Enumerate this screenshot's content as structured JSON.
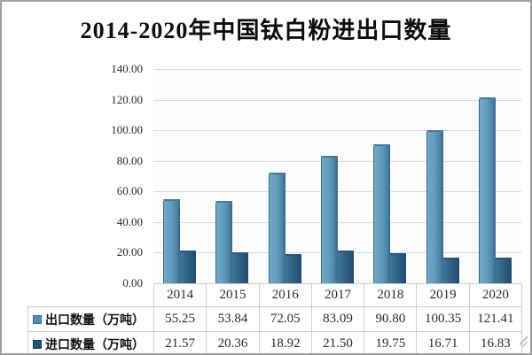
{
  "title": "2014-2020年中国钛白粉进出口数量",
  "chart_data": {
    "type": "bar",
    "title": "2014-2020年中国钛白粉进出口数量",
    "categories": [
      "2014",
      "2015",
      "2016",
      "2017",
      "2018",
      "2019",
      "2020"
    ],
    "series": [
      {
        "name": "出口数量（万吨）",
        "values": [
          55.25,
          53.84,
          72.05,
          83.09,
          90.8,
          100.35,
          121.41
        ],
        "color": "#4e8fb4"
      },
      {
        "name": "进口数量（万吨）",
        "values": [
          21.57,
          20.36,
          18.92,
          21.5,
          19.75,
          16.71,
          16.83
        ],
        "color": "#215577"
      }
    ],
    "xlabel": "",
    "ylabel": "",
    "ylim": [
      0,
      140
    ],
    "ytick_step": 20,
    "ytick_decimals": 2,
    "grid": true,
    "legend_position": "table-rows-left"
  },
  "table": {
    "year_header": [
      "2014",
      "2015",
      "2016",
      "2017",
      "2018",
      "2019",
      "2020"
    ],
    "rows": [
      {
        "label": "出口数量（万吨）",
        "values": [
          "55.25",
          "53.84",
          "72.05",
          "83.09",
          "90.80",
          "100.35",
          "121.41"
        ]
      },
      {
        "label": "进口数量（万吨）",
        "values": [
          "21.57",
          "20.36",
          "18.92",
          "21.50",
          "19.75",
          "16.71",
          "16.83"
        ]
      }
    ]
  },
  "colors": {
    "export_bar": "#4e8fb4",
    "import_bar": "#215577",
    "gridline": "#d9d9d9",
    "table_border": "#c9cfd6",
    "frame_border": "#a0a0a0",
    "title_text": "#0d0d0d"
  }
}
